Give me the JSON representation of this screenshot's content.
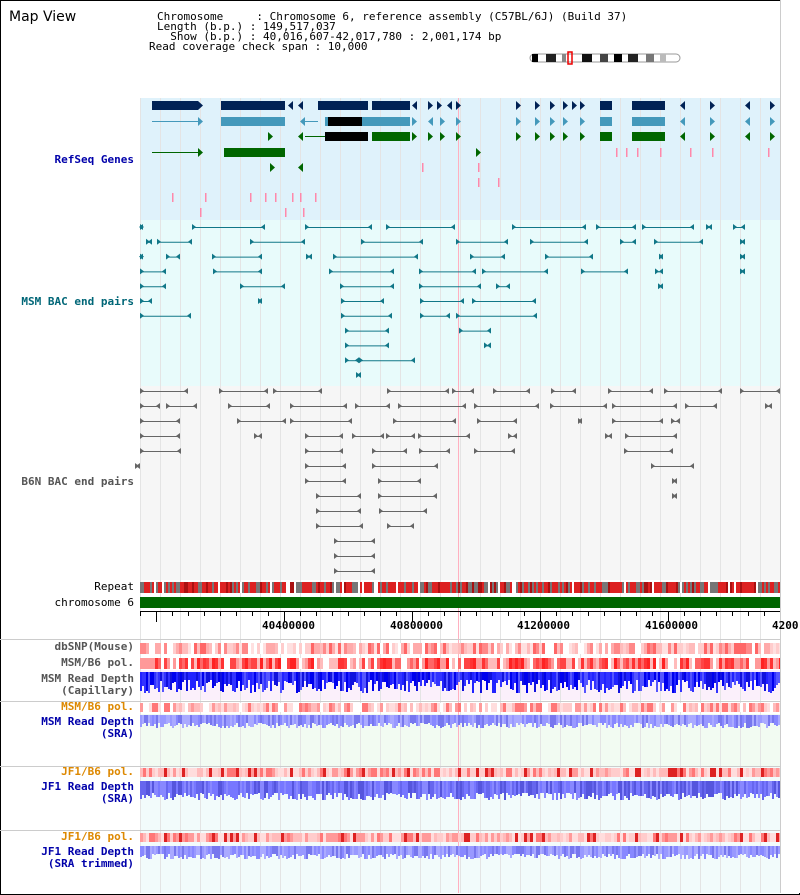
{
  "view": {
    "title": "Map View"
  },
  "info": {
    "lines": [
      "Chromosome     : Chromosome 6, reference assembly (C57BL/6J) (Build 37)",
      "Length (b.p.) : 149,517,037",
      "  Show (b.p.) : 40,016,607-42,017,780 : 2,001,174 bp",
      "Read coverage check span : 10,000"
    ]
  },
  "tracks": {
    "refseq": "RefSeq Genes",
    "msm_bac": "MSM BAC end pairs",
    "b6n_bac": "B6N BAC end pairs",
    "repeat": "Repeat",
    "chrom": "chromosome 6",
    "dbsnp": "dbSNP(Mouse)",
    "msm_pol_1": "MSM/B6 pol.",
    "msm_depth_cap": "MSM Read Depth\n(Capillary)",
    "msm_pol_2": "MSM/B6 pol.",
    "msm_depth_sra": "MSM Read Depth\n(SRA)",
    "jf1_pol_1": "JF1/B6 pol.",
    "jf1_depth_sra": "JF1 Read Depth\n(SRA)",
    "jf1_pol_2": "JF1/B6 pol.",
    "jf1_depth_trim": "JF1 Read Depth\n(SRA trimmed)"
  },
  "axis": {
    "ticks": [
      "40400000",
      "40800000",
      "41200000",
      "41600000",
      "4200"
    ]
  },
  "colors": {
    "refseq_bg": "#dff2fb",
    "msm_bg": "#e8fbfb",
    "b6n_bg": "#f6f6f6",
    "cov_bg": "#fbf0fb",
    "sra_bg": "#f2fbf2",
    "jf1_bg": "#f2fbfb",
    "refseq_label": "#0000aa",
    "msm_label": "#006677",
    "b6n_label": "#555555",
    "pol_label": "#dd8800",
    "depth_label": "#0000aa",
    "gene_dark": "#002255",
    "gene_mid": "#4499bb",
    "gene_green": "#006600",
    "gene_black": "#000000",
    "msm_line": "#117788",
    "b6n_line": "#666666",
    "chrom": "#006600"
  }
}
